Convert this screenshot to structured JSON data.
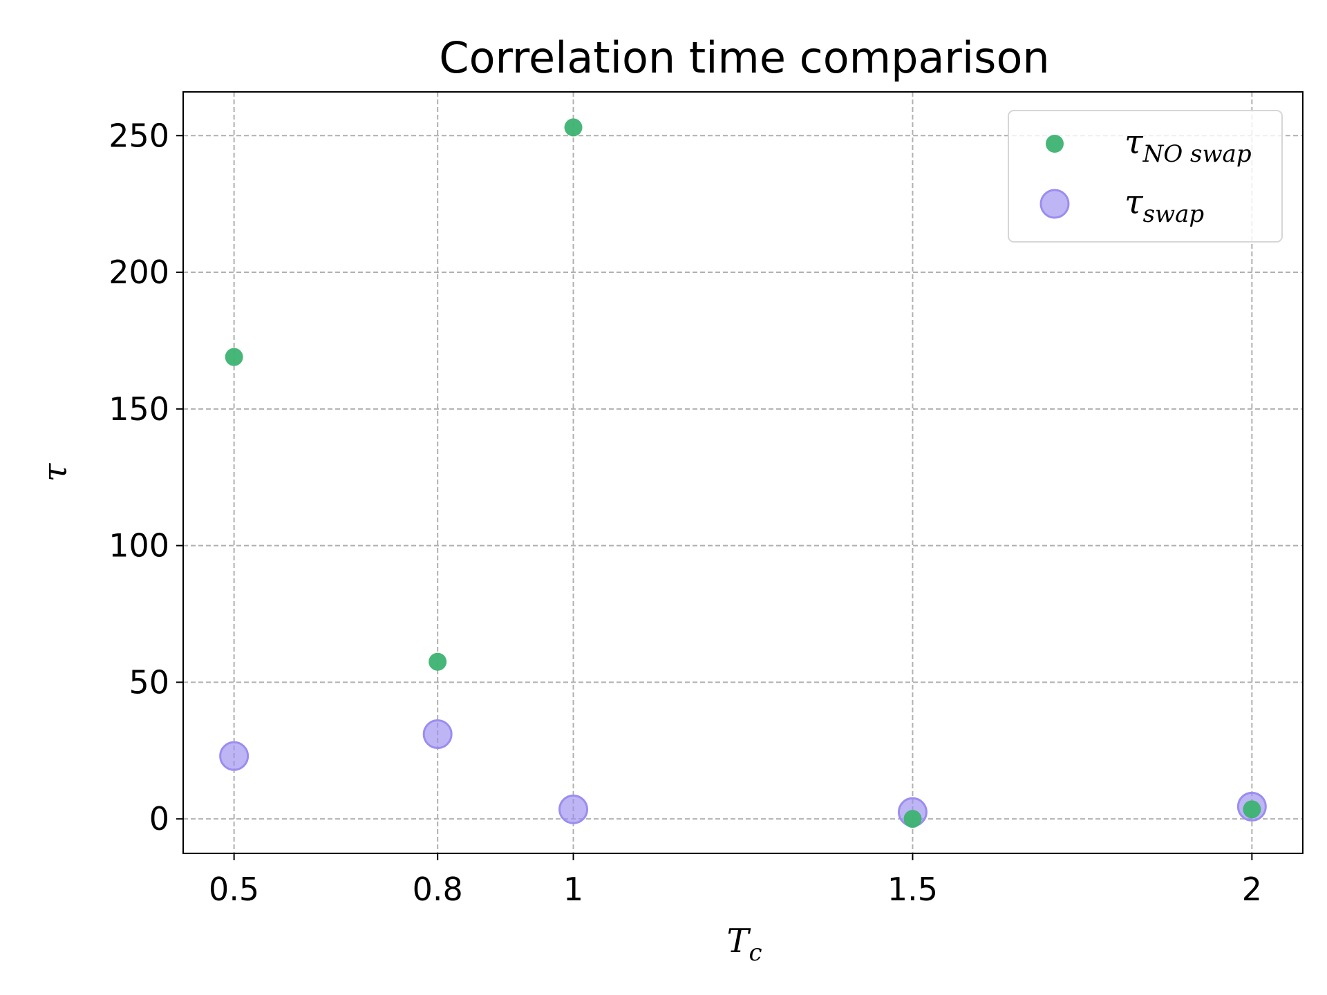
{
  "chart_data": {
    "type": "scatter",
    "title": "Correlation time comparison",
    "xlabel": {
      "main": "T",
      "sub": "c"
    },
    "ylabel": "τ",
    "x_ticks": [
      {
        "value": 0.5,
        "label": "0.5"
      },
      {
        "value": 0.8,
        "label": "0.8"
      },
      {
        "value": 1.0,
        "label": "1"
      },
      {
        "value": 1.5,
        "label": "1.5"
      },
      {
        "value": 2.0,
        "label": "2"
      }
    ],
    "y_ticks": [
      {
        "value": 0,
        "label": "0"
      },
      {
        "value": 50,
        "label": "50"
      },
      {
        "value": 100,
        "label": "100"
      },
      {
        "value": 150,
        "label": "150"
      },
      {
        "value": 200,
        "label": "200"
      },
      {
        "value": 250,
        "label": "250"
      }
    ],
    "xlim": [
      0.425,
      2.075
    ],
    "ylim": [
      -12.6,
      266
    ],
    "grid": true,
    "legend_position": "top-right",
    "series": [
      {
        "name": {
          "main": "τ",
          "sub": "NO swap"
        },
        "color": "#3cb371",
        "marker": "small-circle",
        "points": [
          {
            "x": 0.5,
            "y": 169
          },
          {
            "x": 0.8,
            "y": 57.5
          },
          {
            "x": 1.0,
            "y": 253
          },
          {
            "x": 1.5,
            "y": 0
          },
          {
            "x": 2.0,
            "y": 3.5
          }
        ]
      },
      {
        "name": {
          "main": "τ",
          "sub": "swap"
        },
        "color": "#9b8df0",
        "marker": "large-circle",
        "points": [
          {
            "x": 0.5,
            "y": 23
          },
          {
            "x": 0.8,
            "y": 31
          },
          {
            "x": 1.0,
            "y": 3.5
          },
          {
            "x": 1.5,
            "y": 2.5
          },
          {
            "x": 2.0,
            "y": 4.5
          }
        ]
      }
    ]
  }
}
